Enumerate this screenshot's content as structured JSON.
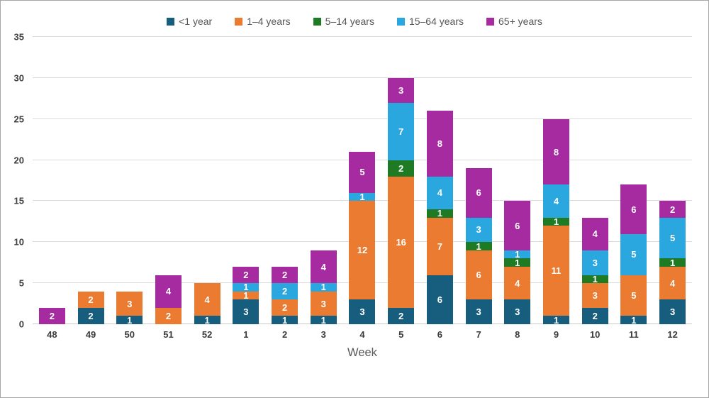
{
  "chart_data": {
    "type": "bar",
    "stacked": true,
    "title": "",
    "xlabel": "Week",
    "ylabel": "",
    "ylim": [
      0,
      35
    ],
    "y_ticks": [
      0,
      5,
      10,
      15,
      20,
      25,
      30,
      35
    ],
    "grid": true,
    "legend_position": "top",
    "categories": [
      "48",
      "49",
      "50",
      "51",
      "52",
      "1",
      "2",
      "3",
      "4",
      "5",
      "6",
      "7",
      "8",
      "9",
      "10",
      "11",
      "12"
    ],
    "series": [
      {
        "name": "<1 year",
        "color": "#175E7E",
        "values": [
          0,
          2,
          1,
          0,
          1,
          3,
          1,
          1,
          3,
          2,
          6,
          3,
          3,
          1,
          2,
          1,
          3
        ]
      },
      {
        "name": "1–4 years",
        "color": "#EB7B30",
        "values": [
          0,
          2,
          3,
          2,
          4,
          1,
          2,
          3,
          12,
          16,
          7,
          6,
          4,
          11,
          3,
          5,
          4
        ]
      },
      {
        "name": "5–14 years",
        "color": "#1E7B24",
        "values": [
          0,
          0,
          0,
          0,
          0,
          0,
          0,
          0,
          0,
          2,
          1,
          1,
          1,
          1,
          1,
          0,
          1
        ]
      },
      {
        "name": "15–64 years",
        "color": "#2AA7DF",
        "values": [
          0,
          0,
          0,
          0,
          0,
          1,
          2,
          1,
          1,
          7,
          4,
          3,
          1,
          4,
          3,
          5,
          5
        ]
      },
      {
        "name": "65+ years",
        "color": "#A62BA1",
        "values": [
          2,
          0,
          0,
          4,
          0,
          2,
          2,
          4,
          5,
          3,
          8,
          6,
          6,
          8,
          4,
          6,
          2
        ]
      }
    ],
    "bar_totals": [
      2,
      4,
      4,
      6,
      5,
      7,
      7,
      9,
      21,
      30,
      26,
      19,
      15,
      25,
      13,
      17,
      15
    ],
    "label_color": "#ffffff"
  }
}
